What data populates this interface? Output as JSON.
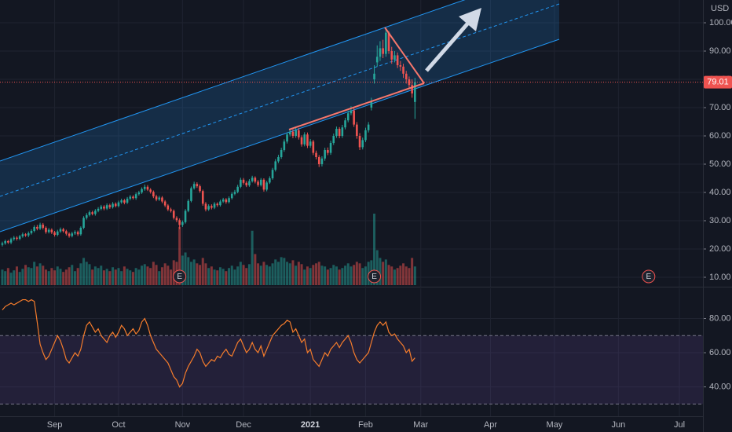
{
  "chart_data": [
    {
      "type": "candlestick",
      "currency": "USD",
      "price_label": "79.01",
      "colors": {
        "up": "#26a69a",
        "down": "#ef5350"
      },
      "grid": true,
      "xlim": [
        -0.8,
        241.1
      ],
      "xticks": [
        {
          "value": 18,
          "label": "Sep"
        },
        {
          "value": 40,
          "label": "Oct"
        },
        {
          "value": 62,
          "label": "Nov"
        },
        {
          "value": 83,
          "label": "Dec"
        },
        {
          "value": 106,
          "label": "2021"
        },
        {
          "value": 125,
          "label": "Feb"
        },
        {
          "value": 144,
          "label": "Mar"
        },
        {
          "value": 168,
          "label": "Apr"
        },
        {
          "value": 190,
          "label": "May"
        },
        {
          "value": 212,
          "label": "Jun"
        },
        {
          "value": 233,
          "label": "Jul"
        }
      ],
      "ylim": [
        6.67,
        108.06
      ],
      "yticks": [
        {
          "value": 100,
          "label": "100.00"
        },
        {
          "value": 90,
          "label": "90.00"
        },
        {
          "value": 80,
          "label": "80.00"
        },
        {
          "value": 70,
          "label": "70.00"
        },
        {
          "value": 60,
          "label": "60.00"
        },
        {
          "value": 50,
          "label": "50.00"
        },
        {
          "value": 40,
          "label": "40.00"
        },
        {
          "value": 30,
          "label": "30.00"
        },
        {
          "value": 20,
          "label": "20.00"
        },
        {
          "value": 10,
          "label": "10.00"
        }
      ],
      "events": [
        {
          "label": "E",
          "x": 61
        },
        {
          "label": "E",
          "x": 128
        },
        {
          "label": "E",
          "x": 222.4
        }
      ],
      "open": [
        21.5,
        22.0,
        22.8,
        22.3,
        23.5,
        24.0,
        23.6,
        24.5,
        25.2,
        24.8,
        25.6,
        26.4,
        27.8,
        27.2,
        28.6,
        27.5,
        26.0,
        26.8,
        25.9,
        25.0,
        26.2,
        27.0,
        26.3,
        25.4,
        24.6,
        25.5,
        26.0,
        25.2,
        27.5,
        31.0,
        32.0,
        33.0,
        32.4,
        33.5,
        34.2,
        35.0,
        34.3,
        35.5,
        34.8,
        36.0,
        35.2,
        36.5,
        37.2,
        36.4,
        37.8,
        38.5,
        38.0,
        39.4,
        40.0,
        41.2,
        42.0,
        41.0,
        40.2,
        38.6,
        37.5,
        38.2,
        36.8,
        35.4,
        34.0,
        33.5,
        31.0,
        30.2,
        28.5,
        29.5,
        33.5,
        37.0,
        41.5,
        43.0,
        42.2,
        40.5,
        36.0,
        34.0,
        35.2,
        34.6,
        36.0,
        35.5,
        36.8,
        37.5,
        36.6,
        38.0,
        39.5,
        40.2,
        42.0,
        44.5,
        43.4,
        42.5,
        44.0,
        45.2,
        43.8,
        42.6,
        44.5,
        41.0,
        43.5,
        45.0,
        48.0,
        51.0,
        52.5,
        55.0,
        58.0,
        60.5,
        61.5,
        60.0,
        62.0,
        59.5,
        57.0,
        60.5,
        56.5,
        58.0,
        54.0,
        52.5,
        50.0,
        52.0,
        55.0,
        54.0,
        57.5,
        60.0,
        62.5,
        60.0,
        63.0,
        65.5,
        68.0,
        69.0,
        64.0,
        60.0,
        56.0,
        58.5,
        62.0,
        70.0,
        80.0,
        86.0,
        88.0,
        91.0,
        89.0,
        96.5,
        90.0,
        87.0,
        88.5,
        85.0,
        84.5,
        82.0,
        80.0,
        78.0,
        72.0
      ],
      "high": [
        22.6,
        23.3,
        23.2,
        24.0,
        24.6,
        24.5,
        25.0,
        25.8,
        25.6,
        26.2,
        27.0,
        28.4,
        28.5,
        29.3,
        29.2,
        28.0,
        27.4,
        27.3,
        26.4,
        26.8,
        27.6,
        27.5,
        26.8,
        25.9,
        26.1,
        26.6,
        26.5,
        28.0,
        31.6,
        32.7,
        33.6,
        33.5,
        34.1,
        34.8,
        35.6,
        35.5,
        36.1,
        36.0,
        36.6,
        36.5,
        37.1,
        37.8,
        37.7,
        38.4,
        39.1,
        39.0,
        40.0,
        40.6,
        41.8,
        42.8,
        42.6,
        41.5,
        40.7,
        39.2,
        38.8,
        38.7,
        37.3,
        35.9,
        34.6,
        34.0,
        31.6,
        30.8,
        30.1,
        34.1,
        37.6,
        42.1,
        43.8,
        43.6,
        42.8,
        41.0,
        36.6,
        35.8,
        35.8,
        36.6,
        36.5,
        37.4,
        38.1,
        38.0,
        38.6,
        40.1,
        40.9,
        42.7,
        45.2,
        45.1,
        44.0,
        44.7,
        45.9,
        45.7,
        44.4,
        45.1,
        45.0,
        44.1,
        45.7,
        48.7,
        51.8,
        53.3,
        55.8,
        58.8,
        61.3,
        62.6,
        62.3,
        62.8,
        62.8,
        60.2,
        61.3,
        61.2,
        58.9,
        58.6,
        54.8,
        53.2,
        52.8,
        55.8,
        55.9,
        58.3,
        60.8,
        63.3,
        63.1,
        63.9,
        66.4,
        68.9,
        70.5,
        69.8,
        64.9,
        61.0,
        59.4,
        62.9,
        64.9,
        73.5,
        85.0,
        92.0,
        93.5,
        94.0,
        98.0,
        97.0,
        91.5,
        90.0,
        89.5,
        86.5,
        85.5,
        83.0,
        81.0,
        80.0,
        80.5
      ],
      "low": [
        20.9,
        21.5,
        21.8,
        21.7,
        22.9,
        23.0,
        23.1,
        24.0,
        24.3,
        24.2,
        25.1,
        25.9,
        26.6,
        26.7,
        26.9,
        25.4,
        25.5,
        25.3,
        24.4,
        24.5,
        25.7,
        25.8,
        24.8,
        24.0,
        24.1,
        25.0,
        24.6,
        24.7,
        27.0,
        30.4,
        31.5,
        31.9,
        31.8,
        33.0,
        33.7,
        33.7,
        33.8,
        34.2,
        34.3,
        34.7,
        34.7,
        36.0,
        35.8,
        35.9,
        37.2,
        37.5,
        37.4,
        38.9,
        39.5,
        40.6,
        40.5,
        39.6,
        38.0,
        36.9,
        37.0,
        36.2,
        34.8,
        33.4,
        32.9,
        30.4,
        29.5,
        27.0,
        27.8,
        29.0,
        33.0,
        36.5,
        41.0,
        41.6,
        39.9,
        35.3,
        33.3,
        33.5,
        34.0,
        34.1,
        34.9,
        35.0,
        36.3,
        36.0,
        36.1,
        37.5,
        39.0,
        39.7,
        41.5,
        42.8,
        41.9,
        42.0,
        43.5,
        43.2,
        42.0,
        42.1,
        40.3,
        40.4,
        43.0,
        44.5,
        47.4,
        50.4,
        51.9,
        54.4,
        57.3,
        59.8,
        59.2,
        59.3,
        58.7,
        56.2,
        56.3,
        55.7,
        55.8,
        53.2,
        51.7,
        49.0,
        49.2,
        51.2,
        53.2,
        53.3,
        56.8,
        59.3,
        59.2,
        59.3,
        62.3,
        64.8,
        67.3,
        63.2,
        59.0,
        55.0,
        55.2,
        57.8,
        61.2,
        69.0,
        78.5,
        84.5,
        86.5,
        87.5,
        88.0,
        89.0,
        85.5,
        86.0,
        84.0,
        83.0,
        80.5,
        78.5,
        76.5,
        73.5,
        66.0
      ],
      "close": [
        22.0,
        22.8,
        22.3,
        23.5,
        24.0,
        23.6,
        24.5,
        25.2,
        24.8,
        25.6,
        26.4,
        27.8,
        27.2,
        28.6,
        27.5,
        26.0,
        26.8,
        25.9,
        25.0,
        26.2,
        27.0,
        26.3,
        25.4,
        24.6,
        25.5,
        26.0,
        25.2,
        27.5,
        31.0,
        32.0,
        33.0,
        32.4,
        33.5,
        34.2,
        35.0,
        34.3,
        35.5,
        34.8,
        36.0,
        35.2,
        36.5,
        37.2,
        36.4,
        37.8,
        38.5,
        38.0,
        39.4,
        40.0,
        41.2,
        42.0,
        41.0,
        40.2,
        38.6,
        37.5,
        38.2,
        36.8,
        35.4,
        34.0,
        33.5,
        31.0,
        30.2,
        28.5,
        29.5,
        33.5,
        37.0,
        41.5,
        43.0,
        42.2,
        40.5,
        36.0,
        34.0,
        35.2,
        34.6,
        36.0,
        35.5,
        36.8,
        37.5,
        36.6,
        38.0,
        39.5,
        40.2,
        42.0,
        44.5,
        43.4,
        42.5,
        44.0,
        45.2,
        43.8,
        42.6,
        44.5,
        41.0,
        43.5,
        45.0,
        48.0,
        51.0,
        52.5,
        55.0,
        58.0,
        60.5,
        61.5,
        60.0,
        62.0,
        59.5,
        57.0,
        60.5,
        56.5,
        58.0,
        54.0,
        52.5,
        50.0,
        52.0,
        55.0,
        54.0,
        57.5,
        60.0,
        62.5,
        60.0,
        63.0,
        65.5,
        68.0,
        69.0,
        64.0,
        60.0,
        56.0,
        58.5,
        62.0,
        64.0,
        72.0,
        82.0,
        88.0,
        91.0,
        89.0,
        96.5,
        90.0,
        87.0,
        88.5,
        85.0,
        84.5,
        82.0,
        80.0,
        78.0,
        75.0,
        79.01
      ],
      "volume": [
        20,
        18,
        22,
        16,
        19,
        24,
        17,
        21,
        26,
        23,
        22,
        30,
        24,
        28,
        25,
        20,
        18,
        22,
        19,
        24,
        21,
        17,
        20,
        23,
        26,
        18,
        22,
        28,
        35,
        30,
        27,
        20,
        24,
        22,
        25,
        19,
        21,
        18,
        23,
        20,
        22,
        18,
        24,
        21,
        19,
        17,
        22,
        20,
        25,
        27,
        24,
        22,
        30,
        26,
        18,
        23,
        28,
        25,
        20,
        32,
        30,
        75,
        38,
        42,
        36,
        30,
        33,
        28,
        26,
        35,
        28,
        22,
        24,
        20,
        19,
        23,
        21,
        18,
        22,
        25,
        20,
        24,
        30,
        26,
        22,
        27,
        70,
        40,
        28,
        25,
        30,
        26,
        24,
        28,
        33,
        30,
        36,
        35,
        30,
        28,
        32,
        25,
        30,
        27,
        20,
        24,
        22,
        26,
        28,
        30,
        25,
        24,
        20,
        22,
        26,
        24,
        20,
        22,
        25,
        28,
        24,
        26,
        30,
        28,
        22,
        24,
        30,
        32,
        92,
        45,
        35,
        30,
        33,
        26,
        24,
        20,
        22,
        25,
        28,
        24,
        22,
        35,
        24
      ]
    },
    {
      "type": "line",
      "color": "#f57c2c",
      "band_color": "#7e57c2",
      "levels": [
        70,
        30
      ],
      "xlim": [
        -0.8,
        241.1
      ],
      "ylim": [
        22.8,
        97.7
      ],
      "yticks": [
        {
          "value": 80,
          "label": "80.00"
        },
        {
          "value": 60,
          "label": "60.00"
        },
        {
          "value": 40,
          "label": "40.00"
        }
      ],
      "values": [
        85,
        87,
        88,
        89,
        88,
        89,
        90,
        91,
        91,
        90,
        91,
        90,
        78,
        65,
        60,
        56,
        58,
        62,
        66,
        70,
        67,
        62,
        56,
        54,
        57,
        60,
        58,
        62,
        70,
        76,
        78,
        75,
        72,
        74,
        70,
        68,
        66,
        70,
        72,
        69,
        72,
        76,
        74,
        70,
        72,
        74,
        71,
        73,
        78,
        80,
        76,
        70,
        66,
        62,
        60,
        58,
        56,
        54,
        50,
        46,
        44,
        40,
        42,
        48,
        52,
        55,
        58,
        62,
        60,
        55,
        52,
        54,
        56,
        55,
        58,
        57,
        60,
        62,
        59,
        58,
        62,
        66,
        68,
        64,
        60,
        62,
        66,
        62,
        60,
        64,
        58,
        62,
        66,
        70,
        72,
        74,
        76,
        77,
        79,
        78,
        72,
        74,
        70,
        66,
        68,
        60,
        62,
        56,
        54,
        52,
        56,
        60,
        58,
        62,
        64,
        66,
        63,
        66,
        68,
        70,
        66,
        60,
        56,
        54,
        56,
        58,
        60,
        66,
        72,
        76,
        78,
        76,
        78,
        72,
        70,
        71,
        68,
        66,
        64,
        60,
        62,
        55,
        57
      ]
    }
  ]
}
